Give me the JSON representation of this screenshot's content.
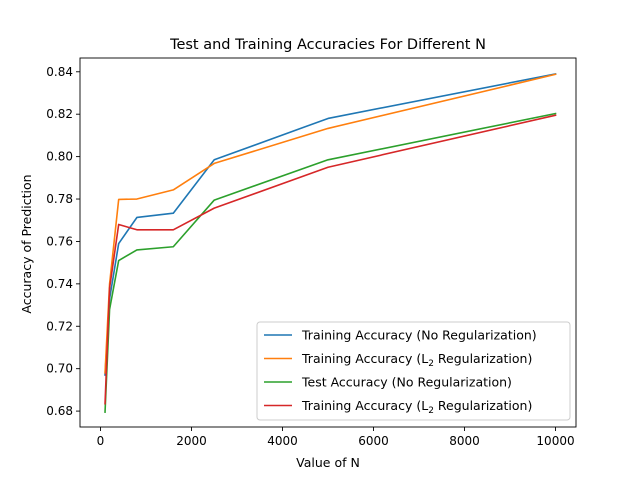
{
  "chart_data": {
    "type": "line",
    "title": "Test and Training Accuracies For Different N",
    "xlabel": "Value of N",
    "ylabel": "Accuracy of Prediction",
    "xlim": [
      -450,
      10450
    ],
    "ylim": [
      0.6725,
      0.8465
    ],
    "xticks": [
      0,
      2000,
      4000,
      6000,
      8000,
      10000
    ],
    "yticks": [
      0.68,
      0.7,
      0.72,
      0.74,
      0.76,
      0.78,
      0.8,
      0.82,
      0.84
    ],
    "grid": false,
    "legend_position": "lower-right",
    "x": [
      100,
      200,
      400,
      800,
      1600,
      2500,
      5000,
      10000
    ],
    "series": [
      {
        "name": "Training Accuracy (No Regularization)",
        "name_parts": [
          "Training Accuracy (No Regularization)",
          "",
          ""
        ],
        "color": "#1f77b4",
        "values": [
          0.697,
          0.733,
          0.759,
          0.7713,
          0.7733,
          0.7985,
          0.818,
          0.839
        ]
      },
      {
        "name": "Training Accuracy (L2 Regularization)",
        "name_parts": [
          "Training Accuracy (L",
          "2",
          " Regularization)"
        ],
        "color": "#ff7f0e",
        "values": [
          0.698,
          0.74,
          0.7798,
          0.78,
          0.7843,
          0.7968,
          0.8133,
          0.8388
        ]
      },
      {
        "name": "Test Accuracy (No Regularization)",
        "name_parts": [
          "Test Accuracy (No Regularization)",
          "",
          ""
        ],
        "color": "#2ca02c",
        "values": [
          0.6795,
          0.728,
          0.751,
          0.756,
          0.7575,
          0.7795,
          0.7985,
          0.8203
        ]
      },
      {
        "name": "Training Accuracy (L2 Regularization)",
        "name_parts": [
          "Training Accuracy (L",
          "2",
          " Regularization)"
        ],
        "color": "#d62728",
        "values": [
          0.6835,
          0.738,
          0.768,
          0.7655,
          0.7655,
          0.7757,
          0.795,
          0.8195
        ]
      }
    ]
  }
}
